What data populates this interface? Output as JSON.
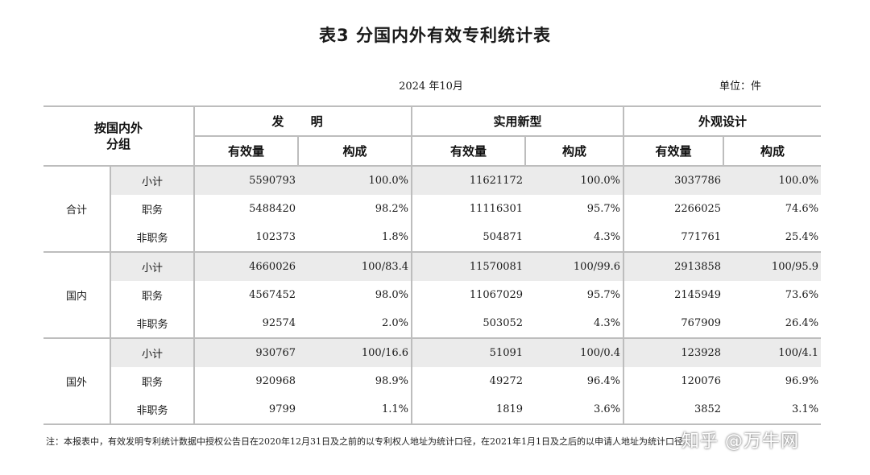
{
  "title": "表3  分国内外有效专利统计表",
  "date": "2024 年10月",
  "unit": "单位：件",
  "table": {
    "corner_label_line1": "按国内外",
    "corner_label_line2": "分组",
    "categories": [
      "发 明",
      "实用新型",
      "外观设计"
    ],
    "sub_headers": [
      "有效量",
      "构成"
    ],
    "groups": [
      {
        "name": "合计",
        "rows": [
          {
            "label": "小计",
            "values": [
              "5590793",
              "100.0%",
              "11621172",
              "100.0%",
              "3037786",
              "100.0%"
            ]
          },
          {
            "label": "职务",
            "values": [
              "5488420",
              "98.2%",
              "11116301",
              "95.7%",
              "2266025",
              "74.6%"
            ]
          },
          {
            "label": "非职务",
            "values": [
              "102373",
              "1.8%",
              "504871",
              "4.3%",
              "771761",
              "25.4%"
            ]
          }
        ]
      },
      {
        "name": "国内",
        "rows": [
          {
            "label": "小计",
            "values": [
              "4660026",
              "100/83.4",
              "11570081",
              "100/99.6",
              "2913858",
              "100/95.9"
            ]
          },
          {
            "label": "职务",
            "values": [
              "4567452",
              "98.0%",
              "11067029",
              "95.7%",
              "2145949",
              "73.6%"
            ]
          },
          {
            "label": "非职务",
            "values": [
              "92574",
              "2.0%",
              "503052",
              "4.3%",
              "767909",
              "26.4%"
            ]
          }
        ]
      },
      {
        "name": "国外",
        "rows": [
          {
            "label": "小计",
            "values": [
              "930767",
              "100/16.6",
              "51091",
              "100/0.4",
              "123928",
              "100/4.1"
            ]
          },
          {
            "label": "职务",
            "values": [
              "920968",
              "98.9%",
              "49272",
              "96.4%",
              "120076",
              "96.9%"
            ]
          },
          {
            "label": "非职务",
            "values": [
              "9799",
              "1.1%",
              "1819",
              "3.6%",
              "3852",
              "3.1%"
            ]
          }
        ]
      }
    ]
  },
  "note": "注：本报表中，有效发明专利统计数据中授权公告日在2020年12月31日及之前的以专利权人地址为统计口径，在2021年1月1日及之后的以申请人地址为统计口径。",
  "watermark": "知乎 @万牛网"
}
